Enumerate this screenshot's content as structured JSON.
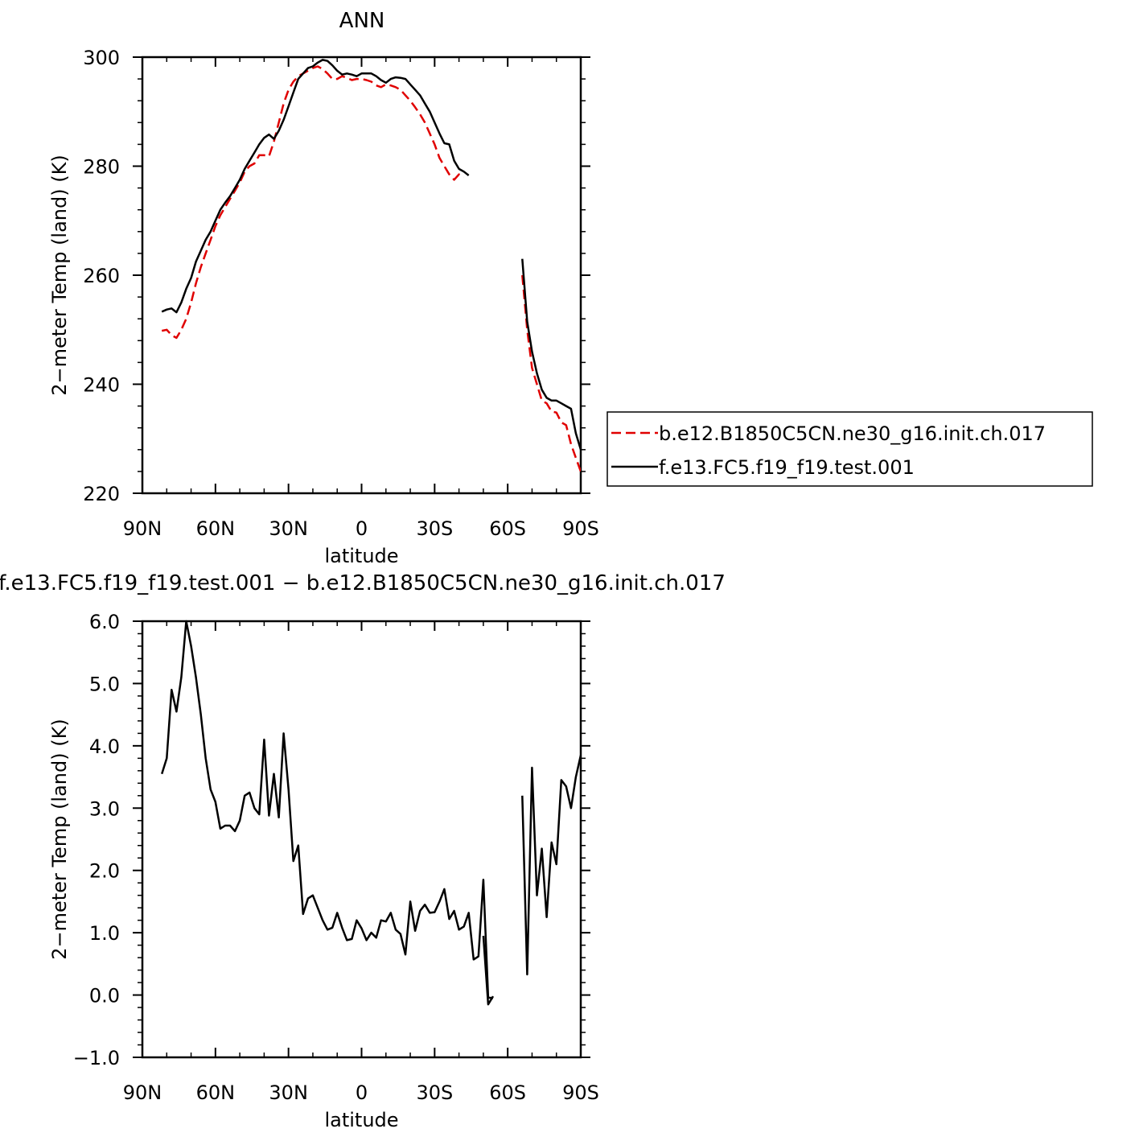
{
  "chart_data": [
    {
      "type": "line",
      "title": "ANN",
      "xlabel": "latitude",
      "ylabel": "2−meter Temp (land) (K)",
      "xlim": [
        90,
        -90
      ],
      "ylim": [
        220,
        300
      ],
      "x_ticks": [
        {
          "value": 90,
          "label": "90N"
        },
        {
          "value": 60,
          "label": "60N"
        },
        {
          "value": 30,
          "label": "30N"
        },
        {
          "value": 0,
          "label": "0"
        },
        {
          "value": -30,
          "label": "30S"
        },
        {
          "value": -60,
          "label": "60S"
        },
        {
          "value": -90,
          "label": "90S"
        }
      ],
      "y_ticks": [
        {
          "value": 300,
          "label": "300"
        },
        {
          "value": 280,
          "label": "280"
        },
        {
          "value": 260,
          "label": "260"
        },
        {
          "value": 240,
          "label": "240"
        },
        {
          "value": 220,
          "label": "220"
        }
      ],
      "legend_position": "right",
      "series": [
        {
          "name": "b.e12.B1850C5CN.ne30_g16.init.ch.017",
          "color": "#e00000",
          "dash": "dashed",
          "segments": [
            {
              "x": [
                82,
                80,
                78,
                76,
                74,
                72,
                70,
                68,
                66,
                64,
                62,
                60,
                58,
                56,
                54,
                52,
                50,
                48,
                46,
                44,
                42,
                40,
                38,
                36,
                34,
                32,
                30,
                28,
                26,
                24,
                22,
                20,
                18,
                16,
                14,
                12,
                10,
                8,
                6,
                4,
                2,
                0,
                -2,
                -4,
                -6,
                -8,
                -10,
                -12,
                -14,
                -16,
                -18,
                -20,
                -22,
                -24,
                -26,
                -28,
                -30,
                -32,
                -34,
                -36,
                -38,
                -40,
                -42,
                -44,
                -46,
                -48,
                -50,
                -52,
                -54
              ],
              "y": [
                249.8,
                250.0,
                249.0,
                248.5,
                250.0,
                252.0,
                255.0,
                258.5,
                261.5,
                264.0,
                266.5,
                269.0,
                271.0,
                272.5,
                274.0,
                275.5,
                277.0,
                279.0,
                280.0,
                280.5,
                282.0,
                282.0,
                281.8,
                284.5,
                288.0,
                291.5,
                294.0,
                295.5,
                296.5,
                297.0,
                297.5,
                298.0,
                298.3,
                297.8,
                297.0,
                296.0,
                296.0,
                296.5,
                296.2,
                295.8,
                296.0,
                296.0,
                295.8,
                295.5,
                294.8,
                294.5,
                295.0,
                294.8,
                294.5,
                294.0,
                293.0,
                292.0,
                290.8,
                289.5,
                288.0,
                286.0,
                284.0,
                281.5,
                280.0,
                278.5,
                277.5,
                278.5,
                278.0,
                null,
                null,
                null,
                null,
                null,
                null
              ]
            },
            {
              "x": [
                -66,
                -68,
                -70,
                -72,
                -74,
                -76,
                -78,
                -80,
                -82,
                -84,
                -86,
                -88,
                -90
              ],
              "y": [
                260.0,
                250.0,
                243.0,
                240.0,
                237.0,
                236.5,
                235.0,
                234.8,
                233.0,
                232.5,
                229.0,
                226.5,
                224.0
              ]
            }
          ]
        },
        {
          "name": "f.e13.FC5.f19_f19.test.001",
          "color": "#000000",
          "dash": "solid",
          "segments": [
            {
              "x": [
                82,
                80,
                78,
                76,
                74,
                72,
                70,
                68,
                66,
                64,
                62,
                60,
                58,
                56,
                54,
                52,
                50,
                48,
                46,
                44,
                42,
                40,
                38,
                36,
                34,
                32,
                30,
                28,
                26,
                24,
                22,
                20,
                18,
                16,
                14,
                12,
                10,
                8,
                6,
                4,
                2,
                0,
                -2,
                -4,
                -6,
                -8,
                -10,
                -12,
                -14,
                -16,
                -18,
                -20,
                -22,
                -24,
                -26,
                -28,
                -30,
                -32,
                -34,
                -36,
                -38,
                -40,
                -42,
                -44,
                -46,
                -48,
                -50,
                -52,
                -54
              ],
              "y": [
                253.3,
                253.7,
                253.9,
                253.2,
                255.0,
                257.5,
                259.5,
                262.5,
                264.5,
                266.5,
                268.0,
                270.0,
                272.0,
                273.3,
                274.5,
                276.0,
                277.5,
                279.5,
                281.0,
                282.5,
                284.0,
                285.2,
                285.8,
                285.0,
                286.5,
                288.5,
                291.0,
                293.5,
                296.0,
                297.0,
                298.0,
                298.3,
                299.0,
                299.5,
                299.3,
                298.5,
                297.5,
                296.8,
                297.0,
                296.8,
                296.5,
                297.0,
                297.0,
                297.0,
                296.5,
                295.8,
                295.3,
                296.0,
                296.3,
                296.2,
                296.0,
                295.0,
                294.0,
                293.0,
                291.5,
                290.0,
                288.0,
                286.0,
                284.2,
                284.0,
                281.0,
                279.5,
                279.0,
                278.3,
                null,
                null,
                null,
                null,
                null
              ]
            },
            {
              "x": [
                -66,
                -68,
                -70,
                -72,
                -74,
                -76,
                -78,
                -80,
                -82,
                -84,
                -86,
                -88,
                -90
              ],
              "y": [
                263.0,
                251.5,
                246.0,
                242.0,
                239.0,
                237.5,
                237.0,
                237.0,
                236.5,
                236.0,
                235.5,
                231.0,
                228.0
              ]
            }
          ]
        }
      ]
    },
    {
      "type": "line",
      "title": "f.e13.FC5.f19_f19.test.001 − b.e12.B1850C5CN.ne30_g16.init.ch.017",
      "xlabel": "latitude",
      "ylabel": "2−meter Temp (land) (K)",
      "xlim": [
        90,
        -90
      ],
      "ylim": [
        -1.0,
        6.0
      ],
      "x_ticks": [
        {
          "value": 90,
          "label": "90N"
        },
        {
          "value": 60,
          "label": "60N"
        },
        {
          "value": 30,
          "label": "30N"
        },
        {
          "value": 0,
          "label": "0"
        },
        {
          "value": -30,
          "label": "30S"
        },
        {
          "value": -60,
          "label": "60S"
        },
        {
          "value": -90,
          "label": "90S"
        }
      ],
      "y_ticks": [
        {
          "value": 6.0,
          "label": "6.0"
        },
        {
          "value": 5.0,
          "label": "5.0"
        },
        {
          "value": 4.0,
          "label": "4.0"
        },
        {
          "value": 3.0,
          "label": "3.0"
        },
        {
          "value": 2.0,
          "label": "2.0"
        },
        {
          "value": 1.0,
          "label": "1.0"
        },
        {
          "value": 0.0,
          "label": "0.0"
        },
        {
          "value": -1.0,
          "label": "−1.0"
        }
      ],
      "series": [
        {
          "color": "#000000",
          "dash": "solid",
          "segments": [
            {
              "x": [
                82,
                80,
                78,
                76,
                74,
                72,
                70,
                68,
                66,
                64,
                62,
                60,
                58,
                56,
                54,
                52,
                50,
                48,
                46,
                44,
                42,
                40,
                38,
                36,
                34,
                32,
                30,
                28,
                26,
                24,
                22,
                20,
                18,
                16,
                14,
                12,
                10,
                8,
                6,
                4,
                2,
                0,
                -2,
                -4,
                -6,
                -8,
                -10,
                -12,
                -14,
                -16,
                -18,
                -20,
                -22,
                -24,
                -26,
                -28,
                -30,
                -32,
                -34,
                -36,
                -38,
                -40,
                -42,
                -44,
                -46,
                -48,
                -50,
                -52,
                -54
              ],
              "y": [
                3.55,
                3.8,
                4.9,
                4.55,
                5.1,
                6.0,
                5.6,
                5.1,
                4.5,
                3.8,
                3.3,
                3.1,
                2.67,
                2.72,
                2.72,
                2.63,
                2.8,
                3.2,
                3.25,
                3.0,
                2.9,
                4.1,
                2.88,
                3.55,
                2.85,
                4.2,
                3.3,
                2.15,
                2.4,
                1.3,
                1.55,
                1.6,
                1.4,
                1.2,
                1.05,
                1.08,
                1.32,
                1.08,
                0.88,
                0.9,
                1.2,
                1.07,
                0.88,
                1.0,
                0.92,
                1.2,
                1.18,
                1.32,
                1.05,
                0.98,
                0.65,
                1.5,
                1.03,
                1.35,
                1.45,
                1.32,
                1.33,
                1.5,
                1.7,
                1.22,
                1.35,
                1.05,
                1.1,
                1.32,
                0.57,
                0.62,
                1.85,
                -0.04,
                -0.05
              ]
            },
            {
              "x": [
                -50,
                -52,
                -54
              ],
              "y": [
                0.95,
                -0.15,
                -0.02
              ]
            },
            {
              "x": [
                -66,
                -68,
                -70,
                -72,
                -74,
                -76,
                -78,
                -80,
                -82,
                -84,
                -86,
                -88,
                -90
              ],
              "y": [
                3.2,
                0.33,
                3.65,
                1.6,
                2.35,
                1.25,
                2.45,
                2.1,
                3.45,
                3.35,
                3.0,
                3.5,
                3.85
              ]
            }
          ]
        }
      ]
    }
  ]
}
